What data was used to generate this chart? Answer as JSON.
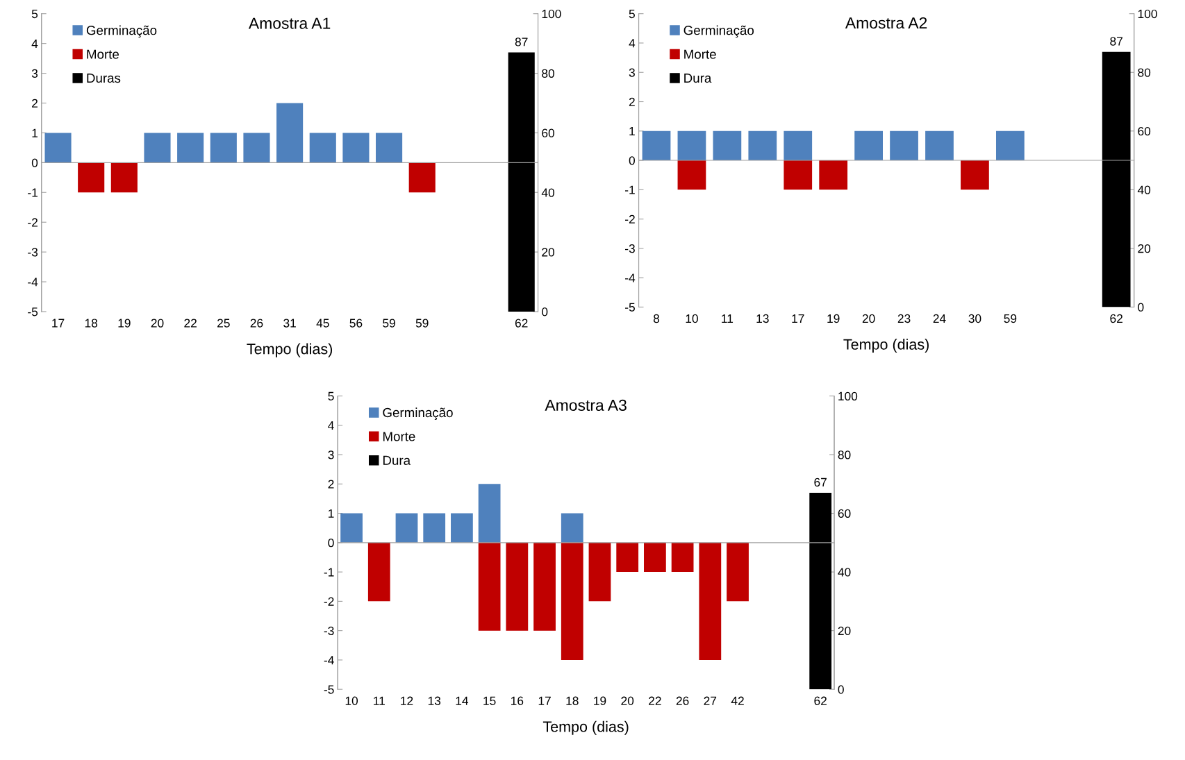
{
  "chart_data": [
    {
      "type": "bar",
      "title": "Amostra A1",
      "xlabel": "Tempo (dias)",
      "categories": [
        "17",
        "18",
        "19",
        "20",
        "22",
        "25",
        "26",
        "31",
        "45",
        "56",
        "59",
        "59",
        null,
        null,
        "62"
      ],
      "ylim": [
        -5,
        5
      ],
      "yticks": [
        -5,
        -4,
        -3,
        -2,
        -1,
        0,
        1,
        2,
        3,
        4,
        5
      ],
      "y2lim": [
        0,
        100
      ],
      "y2ticks": [
        0,
        20,
        40,
        60,
        80,
        100
      ],
      "legend": "top left",
      "series": [
        {
          "name": "Germinação",
          "color": "#4f81bd",
          "values": [
            1,
            null,
            null,
            1,
            1,
            1,
            1,
            2,
            1,
            1,
            1,
            null,
            null,
            null,
            null
          ]
        },
        {
          "name": "Morte",
          "color": "#c00000",
          "values": [
            null,
            -1,
            -1,
            null,
            null,
            null,
            null,
            null,
            null,
            null,
            null,
            -1,
            null,
            null,
            null
          ]
        },
        {
          "name": "Duras",
          "color": "#000000",
          "axis": "y2",
          "values": [
            null,
            null,
            null,
            null,
            null,
            null,
            null,
            null,
            null,
            null,
            null,
            null,
            null,
            null,
            87
          ],
          "value_labels": [
            null,
            null,
            null,
            null,
            null,
            null,
            null,
            null,
            null,
            null,
            null,
            null,
            null,
            null,
            "87"
          ]
        }
      ]
    },
    {
      "type": "bar",
      "title": "Amostra A2",
      "xlabel": "Tempo (dias)",
      "categories": [
        "8",
        "10",
        "11",
        "13",
        "17",
        "19",
        "20",
        "23",
        "24",
        "30",
        "59",
        null,
        null,
        "62"
      ],
      "ylim": [
        -5,
        5
      ],
      "yticks": [
        -5,
        -4,
        -3,
        -2,
        -1,
        0,
        1,
        2,
        3,
        4,
        5
      ],
      "y2lim": [
        0,
        100
      ],
      "y2ticks": [
        0,
        20,
        40,
        60,
        80,
        100
      ],
      "legend": "top left",
      "series": [
        {
          "name": "Germinação",
          "color": "#4f81bd",
          "values": [
            1,
            1,
            1,
            1,
            1,
            null,
            1,
            1,
            1,
            null,
            1,
            null,
            null,
            null
          ]
        },
        {
          "name": "Morte",
          "color": "#c00000",
          "values": [
            null,
            -1,
            null,
            null,
            -1,
            -1,
            null,
            null,
            null,
            -1,
            null,
            null,
            null,
            null
          ]
        },
        {
          "name": "Dura",
          "color": "#000000",
          "axis": "y2",
          "values": [
            null,
            null,
            null,
            null,
            null,
            null,
            null,
            null,
            null,
            null,
            null,
            null,
            null,
            87
          ],
          "value_labels": [
            null,
            null,
            null,
            null,
            null,
            null,
            null,
            null,
            null,
            null,
            null,
            null,
            null,
            "87"
          ]
        }
      ]
    },
    {
      "type": "bar",
      "title": "Amostra A3",
      "xlabel": "Tempo (dias)",
      "categories": [
        "10",
        "11",
        "12",
        "13",
        "14",
        "15",
        "16",
        "17",
        "18",
        "19",
        "20",
        "22",
        "26",
        "27",
        "42",
        null,
        null,
        "62"
      ],
      "ylim": [
        -5,
        5
      ],
      "yticks": [
        -5,
        -4,
        -3,
        -2,
        -1,
        0,
        1,
        2,
        3,
        4,
        5
      ],
      "y2lim": [
        0,
        100
      ],
      "y2ticks": [
        0,
        20,
        40,
        60,
        80,
        100
      ],
      "legend": "top left",
      "series": [
        {
          "name": "Germinação",
          "color": "#4f81bd",
          "values": [
            1,
            null,
            1,
            1,
            1,
            2,
            null,
            null,
            1,
            null,
            null,
            null,
            null,
            null,
            null,
            null,
            null,
            null
          ]
        },
        {
          "name": "Morte",
          "color": "#c00000",
          "values": [
            null,
            -2,
            null,
            null,
            null,
            -3,
            -3,
            -3,
            -4,
            -2,
            -1,
            -1,
            -1,
            -4,
            -2,
            null,
            null,
            null
          ]
        },
        {
          "name": "Dura",
          "color": "#000000",
          "axis": "y2",
          "values": [
            null,
            null,
            null,
            null,
            null,
            null,
            null,
            null,
            null,
            null,
            null,
            null,
            null,
            null,
            null,
            null,
            null,
            67
          ],
          "value_labels": [
            null,
            null,
            null,
            null,
            null,
            null,
            null,
            null,
            null,
            null,
            null,
            null,
            null,
            null,
            null,
            null,
            null,
            "67"
          ]
        }
      ]
    }
  ]
}
